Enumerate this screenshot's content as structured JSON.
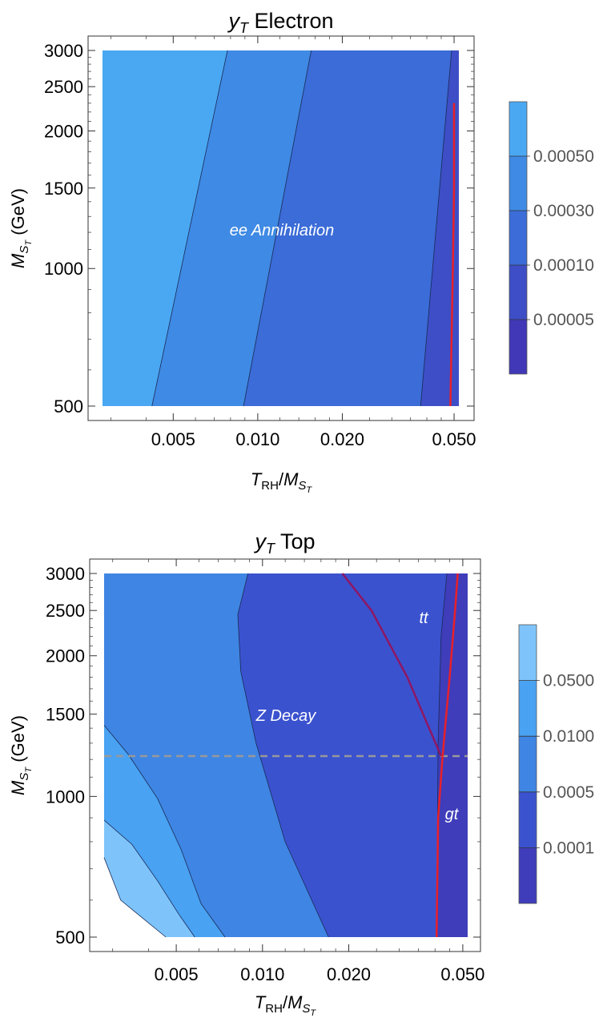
{
  "chart_data": [
    {
      "type": "contour",
      "title_sym": "y",
      "title_sub": "T",
      "title_text": "Electron",
      "xlabel_base": "T",
      "xlabel_sub": "RH",
      "xlabel_over": "M",
      "xlabel_over_sub": "S",
      "xlabel_over_subsub": "T",
      "ylabel_base": "M",
      "ylabel_sub": "S",
      "ylabel_subsub": "T",
      "ylabel_unit": "(GeV)",
      "xscale": "log",
      "yscale": "log",
      "xlim": [
        0.0028,
        0.052
      ],
      "ylim": [
        500,
        3000
      ],
      "x_ticks": [
        0.005,
        0.01,
        0.02,
        0.05
      ],
      "x_tick_labels": [
        "0.005",
        "0.010",
        "0.020",
        "0.050"
      ],
      "y_ticks": [
        500,
        1000,
        1500,
        2000,
        2500,
        3000
      ],
      "y_tick_labels": [
        "500",
        "1000",
        "1500",
        "2000",
        "2500",
        "3000"
      ],
      "regions": [
        {
          "color": "#4aa8f3",
          "level": "> 0.00050",
          "boundary_x_at_500": 0.0042,
          "boundary_x_at_3000": 0.0078
        },
        {
          "color": "#3f8ae4",
          "level": "0.00030 - 0.00050",
          "boundary_x_at_500": 0.0089,
          "boundary_x_at_3000": 0.0155
        },
        {
          "color": "#3b6cd8",
          "level": "0.00010 - 0.00030",
          "boundary_x_at_500": 0.038,
          "boundary_x_at_3000": 0.049
        },
        {
          "color": "#3d4ec6",
          "level": "0.00005 - 0.00010"
        }
      ],
      "red_curve": {
        "color": "#e8202a",
        "points": [
          [
            0.0485,
            500
          ],
          [
            0.0495,
            1000
          ],
          [
            0.05,
            1500
          ],
          [
            0.05,
            2300
          ]
        ]
      },
      "annotations": [
        "ee Annihilation"
      ],
      "colorbar": {
        "colors": [
          "#4aa8f3",
          "#3f8ae4",
          "#3b6cd8",
          "#3d4ec6",
          "#4038b7"
        ],
        "labels": [
          "0.00050",
          "0.00030",
          "0.00010",
          "0.00005"
        ]
      }
    },
    {
      "type": "contour",
      "title_sym": "y",
      "title_sub": "T",
      "title_text": "Top",
      "xlabel_base": "T",
      "xlabel_sub": "RH",
      "xlabel_over": "M",
      "xlabel_over_sub": "S",
      "xlabel_over_subsub": "T",
      "ylabel_base": "M",
      "ylabel_sub": "S",
      "ylabel_subsub": "T",
      "ylabel_unit": "(GeV)",
      "xscale": "log",
      "yscale": "log",
      "xlim": [
        0.0028,
        0.052
      ],
      "ylim": [
        500,
        3000
      ],
      "x_ticks": [
        0.005,
        0.01,
        0.02,
        0.05
      ],
      "x_tick_labels": [
        "0.005",
        "0.010",
        "0.020",
        "0.050"
      ],
      "y_ticks": [
        500,
        1000,
        1500,
        2000,
        2500,
        3000
      ],
      "y_tick_labels": [
        "500",
        "1000",
        "1500",
        "2000",
        "2500",
        "3000"
      ],
      "regions": [
        {
          "color": "#7ec4fb",
          "level": "> 0.0500"
        },
        {
          "color": "#49a2f2",
          "level": "0.0100 - 0.0500"
        },
        {
          "color": "#3f85e3",
          "level": "0.0005 - 0.0100"
        },
        {
          "color": "#3b52cf",
          "level": "0.0001 - 0.0005"
        },
        {
          "color": "#3f3dba",
          "level": "< 0.0001"
        }
      ],
      "contours": [
        {
          "points": [
            [
              0.0028,
              740
            ],
            [
              0.0032,
              600
            ],
            [
              0.0046,
              500
            ]
          ]
        },
        {
          "points": [
            [
              0.0028,
              890
            ],
            [
              0.0035,
              790
            ],
            [
              0.0043,
              660
            ],
            [
              0.0051,
              560
            ],
            [
              0.0058,
              500
            ]
          ]
        },
        {
          "points": [
            [
              0.0028,
              1420
            ],
            [
              0.0034,
              1230
            ],
            [
              0.0043,
              990
            ],
            [
              0.0052,
              770
            ],
            [
              0.0061,
              590
            ],
            [
              0.0074,
              500
            ]
          ]
        },
        {
          "points": [
            [
              0.0089,
              3000
            ],
            [
              0.0082,
              2450
            ],
            [
              0.0084,
              1850
            ],
            [
              0.0095,
              1300
            ],
            [
              0.012,
              800
            ],
            [
              0.017,
              500
            ]
          ]
        },
        {
          "points": [
            [
              0.044,
              3000
            ],
            [
              0.042,
              2200
            ],
            [
              0.041,
              1300
            ],
            [
              0.0405,
              500
            ]
          ]
        }
      ],
      "purple_curve": {
        "color": "#8e1763",
        "points": [
          [
            0.019,
            3000
          ],
          [
            0.024,
            2500
          ],
          [
            0.032,
            1800
          ],
          [
            0.042,
            1220
          ]
        ]
      },
      "red_curve": {
        "color": "#e8202a",
        "points": [
          [
            0.0405,
            500
          ],
          [
            0.041,
            900
          ],
          [
            0.0425,
            1220
          ],
          [
            0.045,
            1800
          ],
          [
            0.047,
            2500
          ],
          [
            0.048,
            3000
          ]
        ]
      },
      "dashed_line": {
        "y": 1220,
        "color": "#999999"
      },
      "annotations": [
        "Z Decay",
        "tt",
        "gt"
      ],
      "colorbar": {
        "colors": [
          "#7ec4fb",
          "#49a2f2",
          "#3f85e3",
          "#3b52cf",
          "#3f3dba"
        ],
        "labels": [
          "0.0500",
          "0.0100",
          "0.0005",
          "0.0001"
        ]
      }
    }
  ]
}
